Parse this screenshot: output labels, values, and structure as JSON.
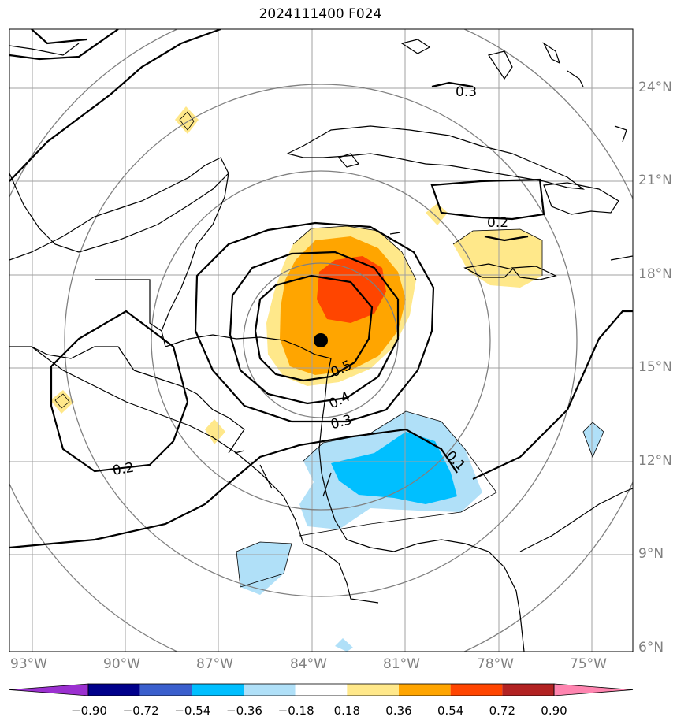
{
  "title": "2024111400 F024",
  "lat_labels": [
    "24°N",
    "21°N",
    "18°N",
    "15°N",
    "12°N",
    "9°N",
    "6°N"
  ],
  "lon_labels": [
    "93°W",
    "90°W",
    "87°W",
    "84°W",
    "81°W",
    "78°W",
    "75°W"
  ],
  "contour_labels": [
    "0.3",
    "0.2",
    "0.5",
    "0.4",
    "0.3",
    "0.2",
    "0.1"
  ],
  "colorbar": {
    "ticks": [
      "−0.90",
      "−0.72",
      "−0.54",
      "−0.36",
      "−0.18",
      "0.18",
      "0.36",
      "0.54",
      "0.72",
      "0.90"
    ],
    "colors": [
      "#9b30d0",
      "#00008b",
      "#3a5fcd",
      "#00bfff",
      "#b0e0f8",
      "#ffffff",
      "#ffe88a",
      "#ffa500",
      "#ff4500",
      "#b22222",
      "#ff85b0"
    ]
  },
  "storm_center": {
    "lat": 15.9,
    "lon": -83.8
  },
  "colors": {
    "grid": "#a0a0a0",
    "range_rings": "#808080",
    "contours": "#000000",
    "coast": "#000000"
  }
}
